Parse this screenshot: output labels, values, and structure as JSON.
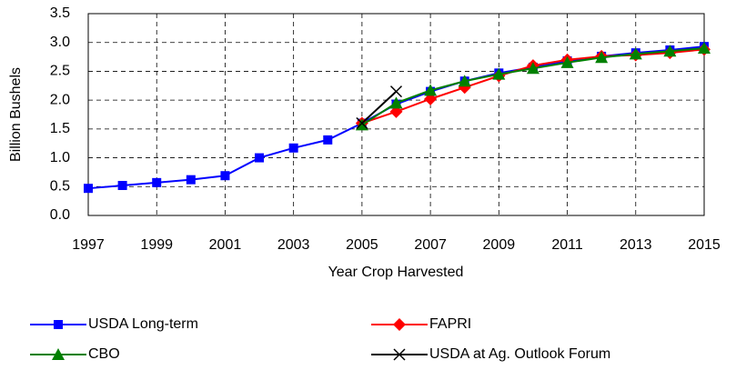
{
  "chart_data": {
    "type": "line",
    "x": [
      1997,
      1998,
      1999,
      2000,
      2001,
      2002,
      2003,
      2004,
      2005,
      2006,
      2007,
      2008,
      2009,
      2010,
      2011,
      2012,
      2013,
      2014,
      2015
    ],
    "series": [
      {
        "name": "USDA Long-term",
        "color": "#0000ff",
        "marker": "square",
        "values": [
          0.47,
          0.52,
          0.57,
          0.62,
          0.69,
          1.0,
          1.17,
          1.31,
          1.6,
          1.93,
          2.15,
          2.33,
          2.47,
          2.57,
          2.68,
          2.76,
          2.82,
          2.87,
          2.93
        ]
      },
      {
        "name": "FAPRI",
        "color": "#ff0000",
        "marker": "diamond",
        "values": [
          null,
          null,
          null,
          null,
          null,
          null,
          null,
          null,
          1.6,
          1.8,
          2.02,
          2.22,
          2.42,
          2.6,
          2.7,
          2.76,
          2.78,
          2.82,
          2.88
        ]
      },
      {
        "name": "CBO",
        "color": "#008000",
        "marker": "triangle",
        "values": [
          null,
          null,
          null,
          null,
          null,
          null,
          null,
          null,
          1.57,
          1.95,
          2.17,
          2.33,
          2.45,
          2.55,
          2.65,
          2.74,
          2.8,
          2.85,
          2.9
        ]
      },
      {
        "name": "USDA at Ag. Outlook Forum",
        "color": "#000000",
        "marker": "x",
        "values": [
          null,
          null,
          null,
          null,
          null,
          null,
          null,
          null,
          1.6,
          2.15,
          null,
          null,
          null,
          null,
          null,
          null,
          null,
          null,
          null
        ]
      }
    ],
    "xlabel": "Year Crop Harvested",
    "ylabel": "Billion Bushels",
    "xlim": [
      1997,
      2015
    ],
    "xticks": [
      1997,
      1999,
      2001,
      2003,
      2005,
      2007,
      2009,
      2011,
      2013,
      2015
    ],
    "ylim": [
      0,
      3.5
    ],
    "yticks": [
      {
        "value": 0,
        "label": "0.0"
      },
      {
        "value": 0.5,
        "label": "0.5"
      },
      {
        "value": 1,
        "label": "1.0"
      },
      {
        "value": 1.5,
        "label": "1.5"
      },
      {
        "value": 2,
        "label": "2.0"
      },
      {
        "value": 2.5,
        "label": "2.5"
      },
      {
        "value": 3,
        "label": "3.0"
      },
      {
        "value": 3.5,
        "label": "3.5"
      }
    ],
    "grid": true,
    "legend": "bottom"
  }
}
